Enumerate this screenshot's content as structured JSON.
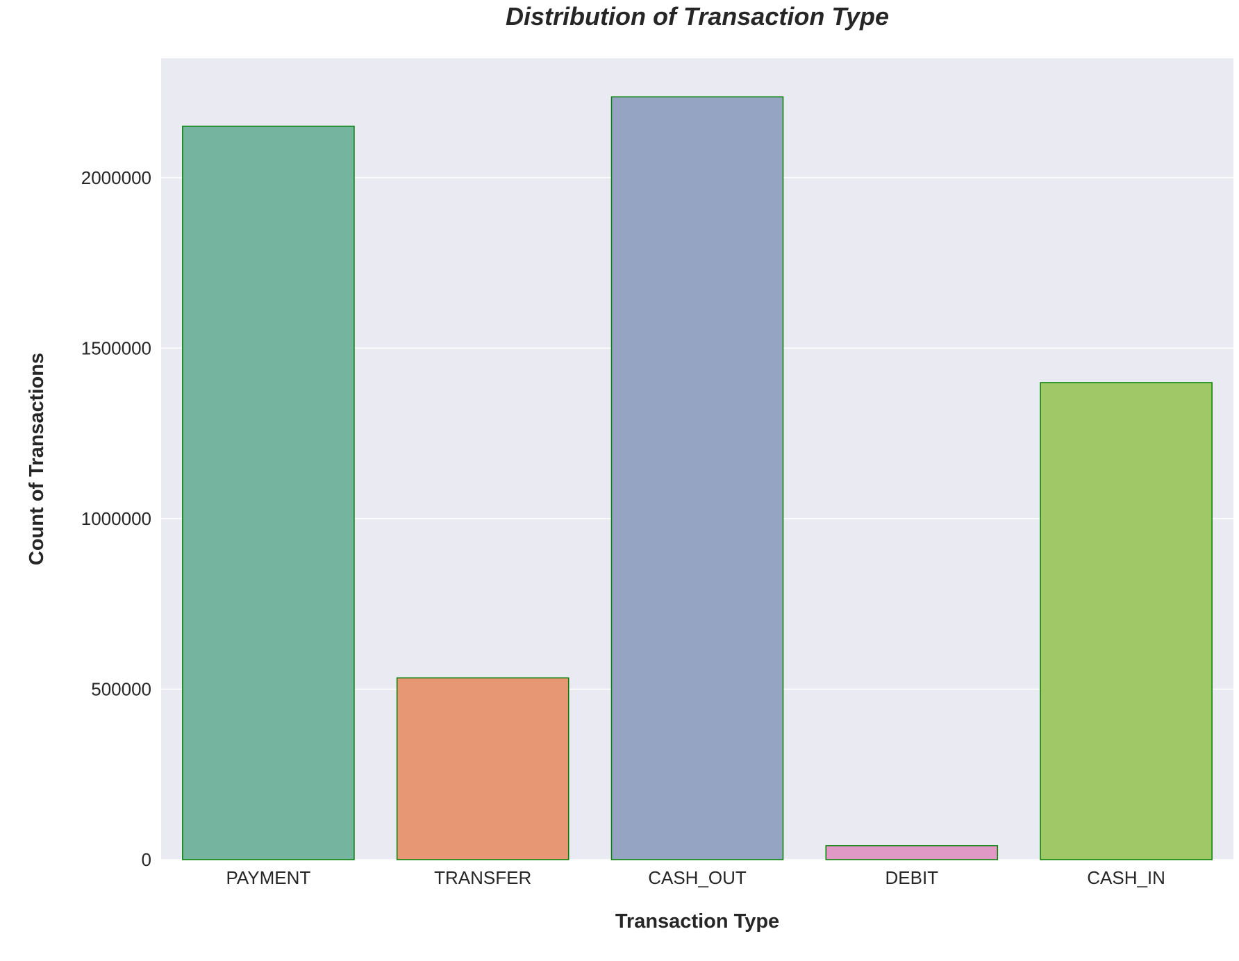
{
  "chart_data": {
    "type": "bar",
    "title": "Distribution of Transaction Type",
    "xlabel": "Transaction Type",
    "ylabel": "Count of Transactions",
    "categories": [
      "PAYMENT",
      "TRANSFER",
      "CASH_OUT",
      "DEBIT",
      "CASH_IN"
    ],
    "values": [
      2151000,
      533000,
      2237000,
      41000,
      1399000
    ],
    "ylim": [
      0,
      2350000
    ],
    "yticks": [
      0,
      500000,
      1000000,
      1500000,
      2000000
    ],
    "ytick_labels": [
      "0",
      "500000",
      "1000000",
      "1500000",
      "2000000"
    ],
    "grid": "y",
    "legend": "none",
    "colors": {
      "bars": [
        "#75b5a0",
        "#e89775",
        "#95a4c2",
        "#df99c4",
        "#a1c867"
      ],
      "bar_edge": "#008000",
      "plot_background": "#eaeaf2",
      "grid": "#ffffff",
      "text": "#262626"
    }
  }
}
